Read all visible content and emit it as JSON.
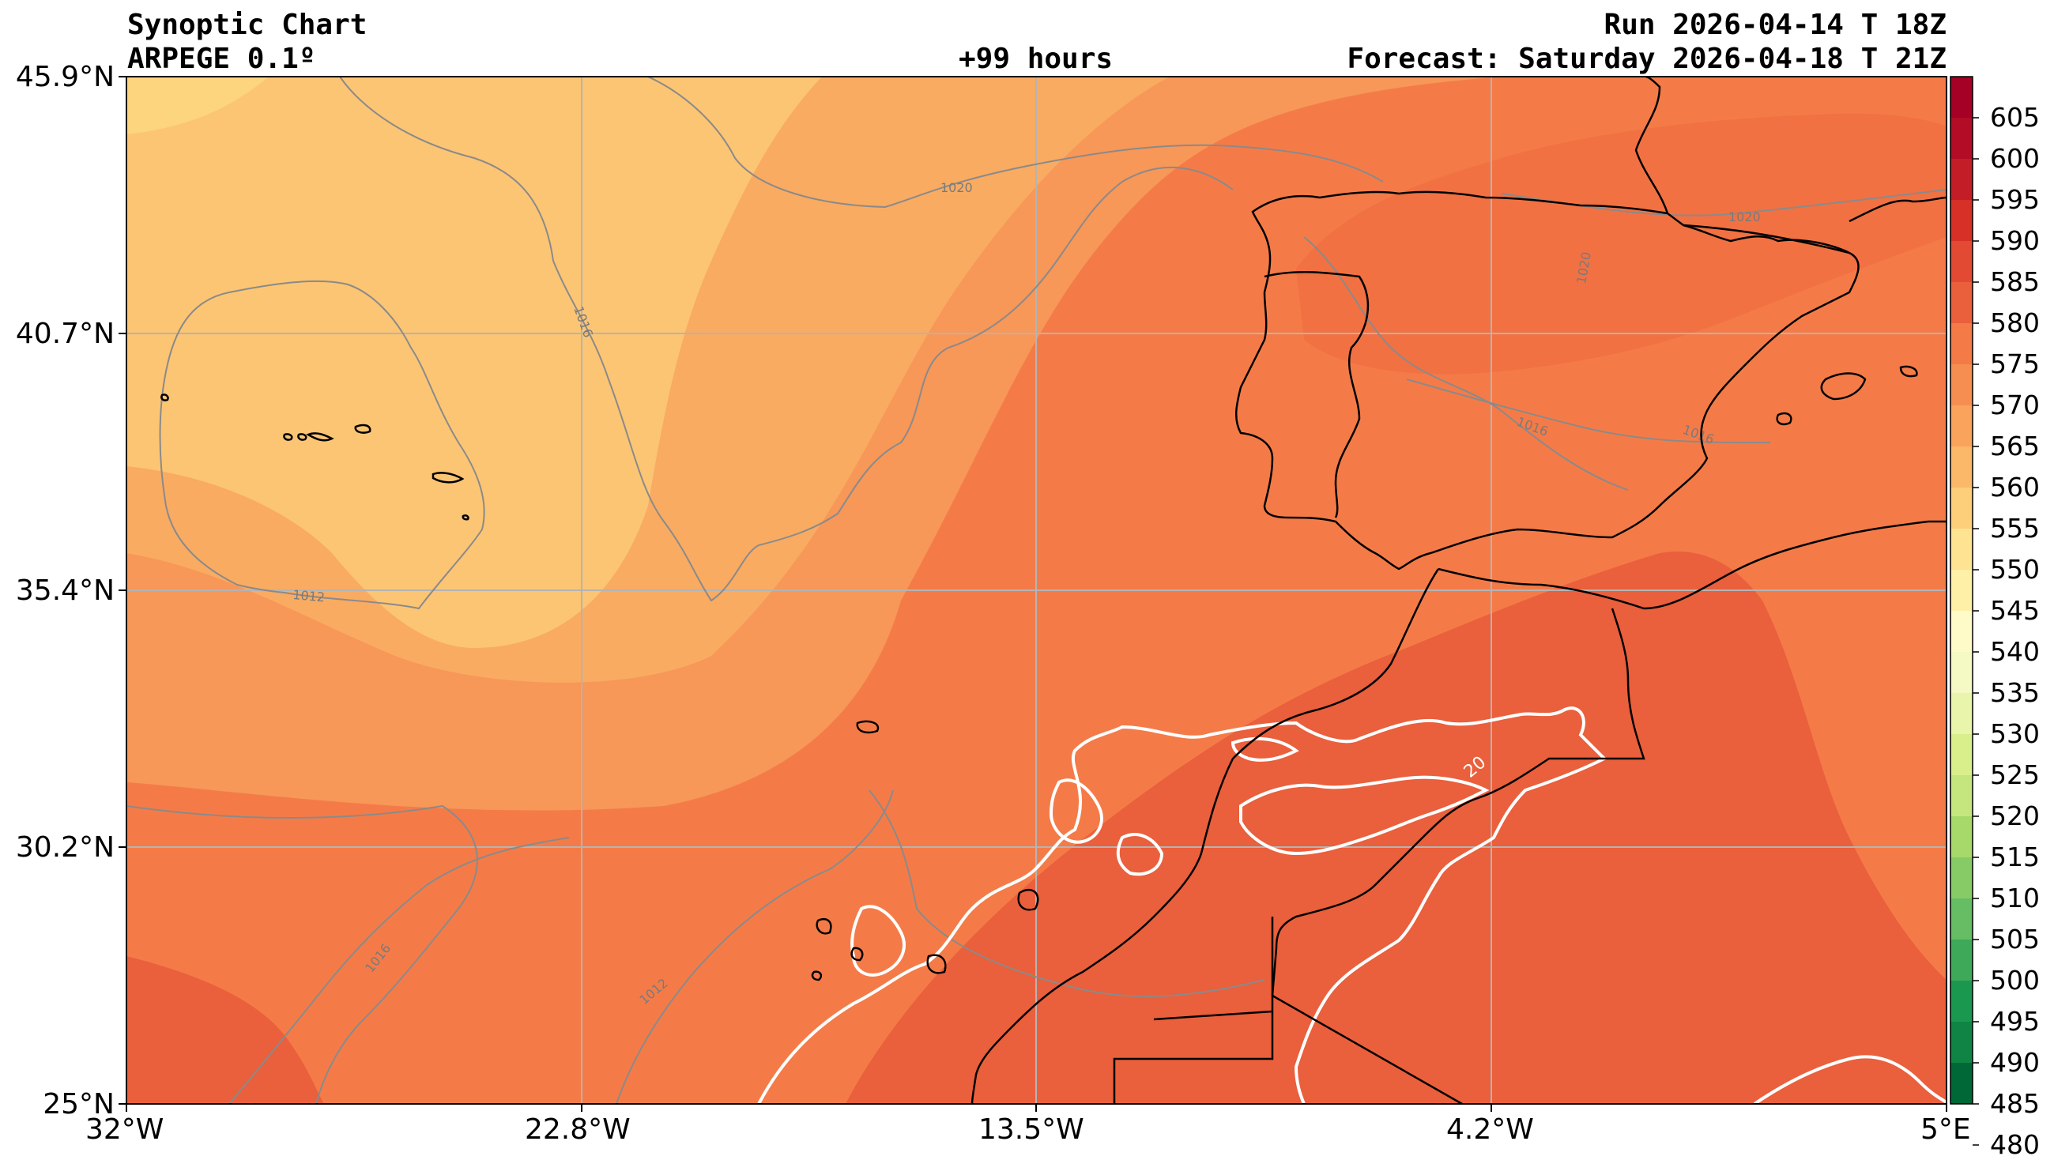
{
  "header": {
    "title": "Synoptic Chart",
    "model": "ARPEGE 0.1º",
    "lead_time": "+99 hours",
    "run": "Run 2026-04-14 T 18Z",
    "forecast": "Forecast: Saturday 2026-04-18 T 21Z"
  },
  "axes": {
    "lat_labels": [
      "45.9°N",
      "40.7°N",
      "35.4°N",
      "30.2°N",
      "25°N"
    ],
    "lon_labels": [
      "32°W",
      "22.8°W",
      "13.5°W",
      "4.2°W",
      "5°E"
    ]
  },
  "colorbar": {
    "levels": [
      "605",
      "600",
      "595",
      "590",
      "585",
      "580",
      "575",
      "570",
      "565",
      "560",
      "555",
      "550",
      "545",
      "540",
      "535",
      "530",
      "525",
      "520",
      "515",
      "510",
      "505",
      "500",
      "495",
      "490",
      "485",
      "480"
    ],
    "colors": [
      "#a50026",
      "#b30c26",
      "#c31e27",
      "#d73027",
      "#e34a33",
      "#ea5f3c",
      "#f47a47",
      "#f68e52",
      "#f9a35c",
      "#fbb869",
      "#fdcf7a",
      "#fee393",
      "#fff0a8",
      "#fffbc8",
      "#f5f9c4",
      "#eaf5ac",
      "#d9ef8b",
      "#c5e67e",
      "#a6d96a",
      "#87cb67",
      "#66bd63",
      "#3fa95a",
      "#1a9850",
      "#0f8444",
      "#006837"
    ]
  },
  "isobar_labels": [
    "1020",
    "1016",
    "1012",
    "1016",
    "1012",
    "1020",
    "1020",
    "1016",
    "1016",
    "20"
  ],
  "shading_palette": {
    "band_555": "#fdd57f",
    "band_560": "#fcc574",
    "band_565": "#f9ab62",
    "band_570": "#f79758",
    "band_575": "#f47b48",
    "band_580": "#ea5f3c",
    "isobar": "#8a8a8a",
    "coast": "#000000",
    "jet_contour": "#ffffff",
    "grid": "#b4b4b4"
  }
}
